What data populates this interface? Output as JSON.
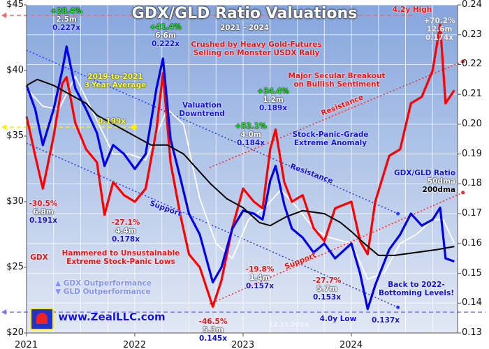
{
  "chart_data": {
    "type": "line",
    "title": "GDX/GLD Ratio Valuations",
    "subtitle": "2021 - 2024",
    "date_stamp": "12.11.2024",
    "x_ticks": [
      "2021",
      "2022",
      "2023",
      "2024"
    ],
    "xlim": [
      2021.0,
      2024.98
    ],
    "y_left": {
      "label": "GDX price",
      "ticks": [
        "$20",
        "$25",
        "$30",
        "$35",
        "$40",
        "$45"
      ],
      "range": [
        20,
        45
      ]
    },
    "y_right": {
      "label": "GDX/GLD Ratio",
      "ticks": [
        "0.13",
        "0.14",
        "0.15",
        "0.16",
        "0.17",
        "0.18",
        "0.19",
        "0.20",
        "0.21",
        "0.22",
        "0.23",
        "0.24"
      ],
      "range": [
        0.13,
        0.24
      ]
    },
    "grid": true,
    "colors": {
      "gdx": "#ff0000",
      "ratio": "#0000ee",
      "dma50": "#ffffff",
      "dma200": "#000000"
    },
    "series": [
      {
        "name": "GDX",
        "axis": "left",
        "x": [
          2021.0,
          2021.08,
          2021.15,
          2021.25,
          2021.33,
          2021.37,
          2021.45,
          2021.55,
          2021.65,
          2021.72,
          2021.8,
          2021.9,
          2022.0,
          2022.1,
          2022.2,
          2022.26,
          2022.33,
          2022.42,
          2022.5,
          2022.6,
          2022.72,
          2022.8,
          2022.9,
          2023.0,
          2023.1,
          2023.18,
          2023.25,
          2023.3,
          2023.38,
          2023.45,
          2023.55,
          2023.65,
          2023.75,
          2023.85,
          2024.0,
          2024.08,
          2024.15,
          2024.22,
          2024.35,
          2024.45,
          2024.55,
          2024.65,
          2024.75,
          2024.82,
          2024.87,
          2024.95
        ],
        "values": [
          36.5,
          33.5,
          31,
          35,
          39,
          39.5,
          36,
          34,
          33,
          29,
          31.5,
          30.5,
          30,
          31,
          35.5,
          39.8,
          33,
          29,
          26,
          25,
          22,
          24,
          28,
          31,
          30,
          29.5,
          34,
          35.5,
          31.5,
          30,
          30.5,
          28,
          27,
          29.5,
          30,
          27,
          26,
          30,
          33.5,
          34,
          37.5,
          38,
          40,
          43.5,
          37.5,
          38.5
        ]
      },
      {
        "name": "GDX/GLD Ratio",
        "axis": "right",
        "x": [
          2021.0,
          2021.08,
          2021.15,
          2021.25,
          2021.33,
          2021.37,
          2021.45,
          2021.55,
          2021.65,
          2021.72,
          2021.8,
          2021.9,
          2022.0,
          2022.1,
          2022.2,
          2022.26,
          2022.33,
          2022.42,
          2022.5,
          2022.6,
          2022.72,
          2022.8,
          2022.9,
          2023.0,
          2023.1,
          2023.18,
          2023.25,
          2023.3,
          2023.38,
          2023.45,
          2023.55,
          2023.65,
          2023.75,
          2023.85,
          2024.0,
          2024.08,
          2024.15,
          2024.22,
          2024.35,
          2024.45,
          2024.55,
          2024.65,
          2024.75,
          2024.82,
          2024.87,
          2024.95
        ],
        "values": [
          0.213,
          0.205,
          0.193,
          0.205,
          0.218,
          0.226,
          0.212,
          0.205,
          0.197,
          0.186,
          0.193,
          0.19,
          0.185,
          0.19,
          0.212,
          0.222,
          0.195,
          0.182,
          0.17,
          0.163,
          0.147,
          0.152,
          0.165,
          0.171,
          0.17,
          0.168,
          0.181,
          0.186,
          0.173,
          0.165,
          0.162,
          0.157,
          0.16,
          0.155,
          0.16,
          0.15,
          0.138,
          0.146,
          0.158,
          0.163,
          0.17,
          0.166,
          0.168,
          0.172,
          0.155,
          0.154
        ]
      },
      {
        "name": "50dma",
        "axis": "right",
        "x": [
          2021.0,
          2021.15,
          2021.3,
          2021.45,
          2021.6,
          2021.8,
          2021.95,
          2022.1,
          2022.3,
          2022.45,
          2022.6,
          2022.75,
          2022.9,
          2023.05,
          2023.2,
          2023.35,
          2023.5,
          2023.65,
          2023.8,
          2024.0,
          2024.15,
          2024.3,
          2024.45,
          2024.6,
          2024.75,
          2024.85,
          2024.95
        ],
        "values": [
          0.212,
          0.206,
          0.205,
          0.216,
          0.205,
          0.19,
          0.19,
          0.188,
          0.205,
          0.2,
          0.175,
          0.16,
          0.155,
          0.168,
          0.172,
          0.178,
          0.172,
          0.165,
          0.162,
          0.16,
          0.148,
          0.15,
          0.16,
          0.163,
          0.168,
          0.168,
          0.16
        ]
      },
      {
        "name": "200dma",
        "axis": "right",
        "x": [
          2021.0,
          2021.1,
          2021.25,
          2021.4,
          2021.55,
          2021.65,
          2021.8,
          2022.0,
          2022.15,
          2022.3,
          2022.45,
          2022.55,
          2022.7,
          2022.85,
          2023.0,
          2023.15,
          2023.25,
          2023.4,
          2023.55,
          2023.75,
          2023.9,
          2024.0,
          2024.12,
          2024.25,
          2024.4,
          2024.6,
          2024.8,
          2024.95
        ],
        "values": [
          0.213,
          0.215,
          0.213,
          0.21,
          0.207,
          0.203,
          0.2,
          0.196,
          0.193,
          0.193,
          0.19,
          0.186,
          0.18,
          0.175,
          0.172,
          0.167,
          0.166,
          0.169,
          0.171,
          0.17,
          0.167,
          0.164,
          0.16,
          0.156,
          0.156,
          0.157,
          0.158,
          0.159
        ]
      }
    ],
    "trendlines": [
      {
        "name": "ratio-resistance",
        "axis": "right",
        "color": "#2233ff",
        "from": [
          2021.0,
          0.2248
        ],
        "to": [
          2024.43,
          0.17
        ]
      },
      {
        "name": "ratio-support",
        "axis": "right",
        "color": "#2233ff",
        "from": [
          2021.0,
          0.1936
        ],
        "to": [
          2024.43,
          0.1386
        ]
      },
      {
        "name": "gdx-resistance",
        "axis": "left",
        "color": "#ff2222",
        "from": [
          2022.69,
          32.6
        ],
        "to": [
          2025.03,
          40.7
        ]
      },
      {
        "name": "gdx-support",
        "axis": "left",
        "color": "#ff2222",
        "from": [
          2022.69,
          22.2
        ],
        "to": [
          2025.03,
          30.7
        ]
      }
    ],
    "reference_lines": [
      {
        "name": "4.2y-high",
        "axis": "left",
        "value": 44.2,
        "color": "#ff6666"
      },
      {
        "name": "3-year-average",
        "axis": "right",
        "value": 0.199,
        "color": "#ffee00"
      },
      {
        "name": "4.0y-low",
        "axis": "right",
        "value": 0.137,
        "color": "#7777ff"
      }
    ],
    "annotations": {
      "peak_2021": [
        "+28.4%",
        "2.5m",
        "0.227x"
      ],
      "peak_2022": [
        "+41.4%",
        "6.6m",
        "0.222x"
      ],
      "crushed": [
        "Crushed by Heavy Gold-Futures",
        "Selling on Monster USDX Rally"
      ],
      "breakout": [
        "Major Secular Breakout",
        "on Bullish Sentiment"
      ],
      "high": "4.2y High",
      "high_stats": [
        "+70.2%",
        "12.6m",
        "0.174x"
      ],
      "average": [
        "2019-to-2021",
        "3-Year Average"
      ],
      "average_value": "0.199x",
      "downtrend": [
        "Valuation",
        "Downtrend"
      ],
      "peak_2023b": [
        "+34.4%",
        "1.2m",
        "0.189x"
      ],
      "peak_2023a": [
        "+52.1%",
        "4.0m",
        "0.184x"
      ],
      "resistance_red": "Resistance",
      "resistance_blue": "Resistance",
      "anomaly": [
        "Stock-Panic-Grade",
        "Extreme Anomaly"
      ],
      "legend": [
        "GDX/GLD Ratio",
        "50dma",
        "200dma"
      ],
      "support_blue": "Support",
      "support_red": "Support",
      "low_2021a": [
        "-30.5%",
        "6.8m",
        "0.191x"
      ],
      "low_2021b": [
        "-27.1%",
        "4.4m",
        "0.178x"
      ],
      "hammered": [
        "Hammered to Unsustainable",
        "Extreme Stock-Panic Lows"
      ],
      "gdx_label": "GDX",
      "outperformance": [
        "GDX Outperformance",
        "GLD Outperformance"
      ],
      "website": "www.ZealLLC.com",
      "low_2022": [
        "-46.5%",
        "5.3m",
        "0.145x"
      ],
      "low_2023a": [
        "-19.8%",
        "1.4m",
        "0.157x"
      ],
      "low_2023b": [
        "-27.7%",
        "5.7m",
        "0.153x"
      ],
      "back_to": [
        "Back to 2022-",
        "Bottoming Levels!"
      ],
      "low_2024": "4.0y Low",
      "low_2024_value": "0.137x"
    }
  }
}
